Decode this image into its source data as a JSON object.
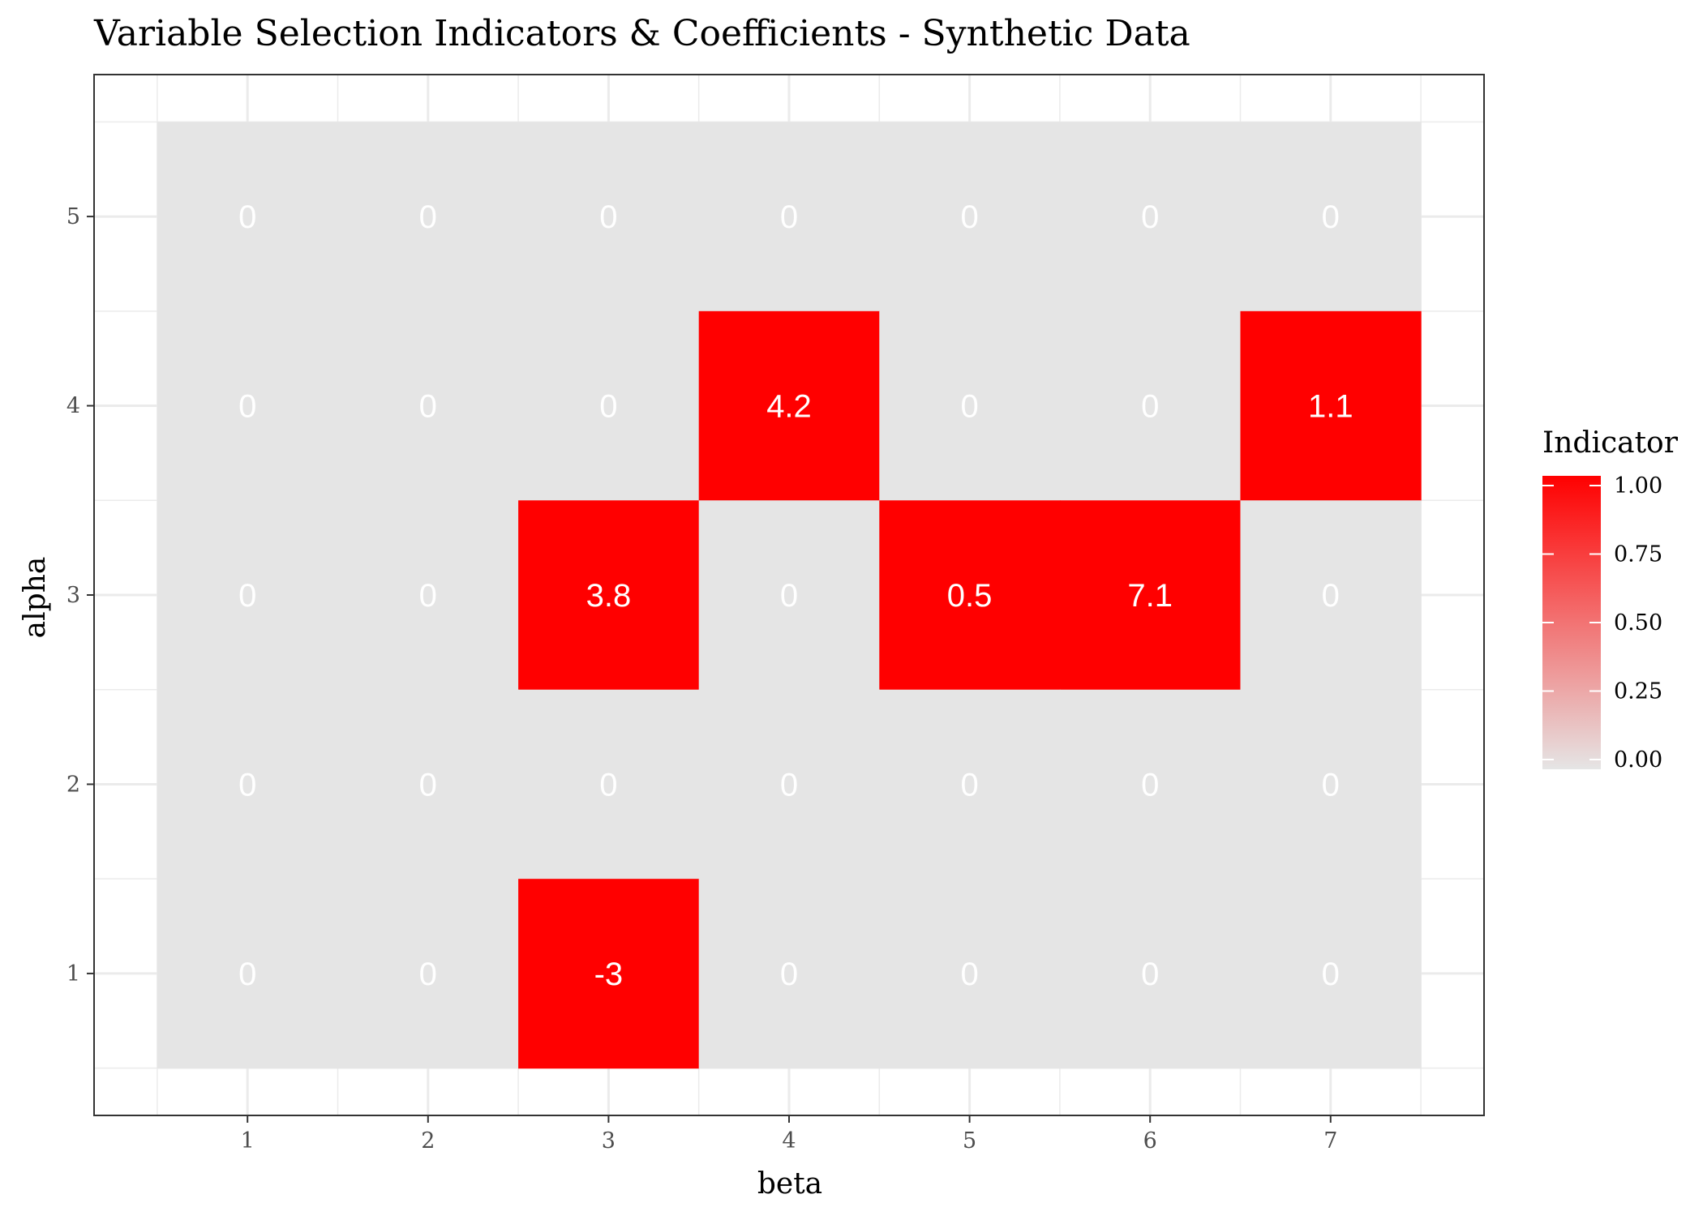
{
  "chart_data": {
    "type": "heatmap",
    "title": "Variable Selection Indicators & Coefficients - Synthetic Data",
    "xlabel": "beta",
    "ylabel": "alpha",
    "x_categories": [
      "1",
      "2",
      "3",
      "4",
      "5",
      "6",
      "7"
    ],
    "y_categories": [
      "1",
      "2",
      "3",
      "4",
      "5"
    ],
    "cells": [
      {
        "alpha": 5,
        "beta": 1,
        "indicator": 0,
        "label": "0"
      },
      {
        "alpha": 5,
        "beta": 2,
        "indicator": 0,
        "label": "0"
      },
      {
        "alpha": 5,
        "beta": 3,
        "indicator": 0,
        "label": "0"
      },
      {
        "alpha": 5,
        "beta": 4,
        "indicator": 0,
        "label": "0"
      },
      {
        "alpha": 5,
        "beta": 5,
        "indicator": 0,
        "label": "0"
      },
      {
        "alpha": 5,
        "beta": 6,
        "indicator": 0,
        "label": "0"
      },
      {
        "alpha": 5,
        "beta": 7,
        "indicator": 0,
        "label": "0"
      },
      {
        "alpha": 4,
        "beta": 1,
        "indicator": 0,
        "label": "0"
      },
      {
        "alpha": 4,
        "beta": 2,
        "indicator": 0,
        "label": "0"
      },
      {
        "alpha": 4,
        "beta": 3,
        "indicator": 0,
        "label": "0"
      },
      {
        "alpha": 4,
        "beta": 4,
        "indicator": 1,
        "label": "4.2"
      },
      {
        "alpha": 4,
        "beta": 5,
        "indicator": 0,
        "label": "0"
      },
      {
        "alpha": 4,
        "beta": 6,
        "indicator": 0,
        "label": "0"
      },
      {
        "alpha": 4,
        "beta": 7,
        "indicator": 1,
        "label": "1.1"
      },
      {
        "alpha": 3,
        "beta": 1,
        "indicator": 0,
        "label": "0"
      },
      {
        "alpha": 3,
        "beta": 2,
        "indicator": 0,
        "label": "0"
      },
      {
        "alpha": 3,
        "beta": 3,
        "indicator": 1,
        "label": "3.8"
      },
      {
        "alpha": 3,
        "beta": 4,
        "indicator": 0,
        "label": "0"
      },
      {
        "alpha": 3,
        "beta": 5,
        "indicator": 1,
        "label": "0.5"
      },
      {
        "alpha": 3,
        "beta": 6,
        "indicator": 1,
        "label": "7.1"
      },
      {
        "alpha": 3,
        "beta": 7,
        "indicator": 0,
        "label": "0"
      },
      {
        "alpha": 2,
        "beta": 1,
        "indicator": 0,
        "label": "0"
      },
      {
        "alpha": 2,
        "beta": 2,
        "indicator": 0,
        "label": "0"
      },
      {
        "alpha": 2,
        "beta": 3,
        "indicator": 0,
        "label": "0"
      },
      {
        "alpha": 2,
        "beta": 4,
        "indicator": 0,
        "label": "0"
      },
      {
        "alpha": 2,
        "beta": 5,
        "indicator": 0,
        "label": "0"
      },
      {
        "alpha": 2,
        "beta": 6,
        "indicator": 0,
        "label": "0"
      },
      {
        "alpha": 2,
        "beta": 7,
        "indicator": 0,
        "label": "0"
      },
      {
        "alpha": 1,
        "beta": 1,
        "indicator": 0,
        "label": "0"
      },
      {
        "alpha": 1,
        "beta": 2,
        "indicator": 0,
        "label": "0"
      },
      {
        "alpha": 1,
        "beta": 3,
        "indicator": 1,
        "label": "-3"
      },
      {
        "alpha": 1,
        "beta": 4,
        "indicator": 0,
        "label": "0"
      },
      {
        "alpha": 1,
        "beta": 5,
        "indicator": 0,
        "label": "0"
      },
      {
        "alpha": 1,
        "beta": 6,
        "indicator": 0,
        "label": "0"
      },
      {
        "alpha": 1,
        "beta": 7,
        "indicator": 0,
        "label": "0"
      }
    ],
    "legend": {
      "title": "Indicator",
      "ticks": [
        "0.00",
        "0.25",
        "0.50",
        "0.75",
        "1.00"
      ],
      "tick_values": [
        0,
        0.25,
        0.5,
        0.75,
        1
      ],
      "placement": "right"
    },
    "colors": {
      "low": "#e5e5e5",
      "high": "#ff0000",
      "cell_text": "#ffffff",
      "panel_grid": "#ebebeb",
      "panel_border": "#333333"
    },
    "grid": true
  }
}
